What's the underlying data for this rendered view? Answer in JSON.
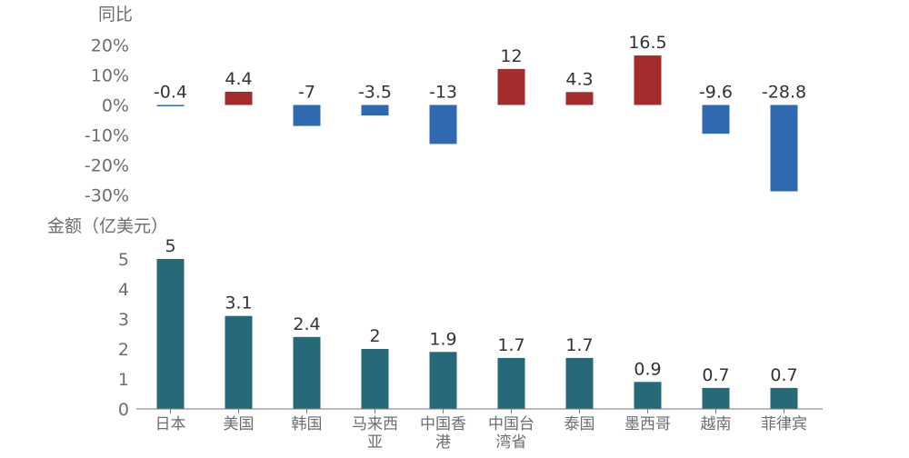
{
  "chart_data": [
    {
      "type": "bar",
      "ylabel": "同比",
      "categories": [
        "日本",
        "美国",
        "韩国",
        "马来西亚",
        "中国香港",
        "中国台湾省",
        "泰国",
        "墨西哥",
        "越南",
        "菲律宾"
      ],
      "values": [
        -0.4,
        4.4,
        -7,
        -3.5,
        -13,
        12,
        4.3,
        16.5,
        -9.6,
        -28.8
      ],
      "data_labels": [
        "-0.4",
        "4.4",
        "-7",
        "-3.5",
        "-13",
        "12",
        "4.3",
        "16.5",
        "-9.6",
        "-28.8"
      ],
      "y_ticks": [
        "20%",
        "10%",
        "0%",
        "-10%",
        "-20%",
        "-30%"
      ],
      "ylim": [
        -30,
        20
      ],
      "colors": {
        "positive": "#a52c2c",
        "negative": "#2f69b0"
      },
      "grid": false
    },
    {
      "type": "bar",
      "ylabel": "金额（亿美元）",
      "categories": [
        "日本",
        "美国",
        "韩国",
        "马来西亚",
        "中国香港",
        "中国台湾省",
        "泰国",
        "墨西哥",
        "越南",
        "菲律宾"
      ],
      "category_labels": [
        [
          "日本"
        ],
        [
          "美国"
        ],
        [
          "韩国"
        ],
        [
          "马来西",
          "亚"
        ],
        [
          "中国香",
          "港"
        ],
        [
          "中国台",
          "湾省"
        ],
        [
          "泰国"
        ],
        [
          "墨西哥"
        ],
        [
          "越南"
        ],
        [
          "菲律宾"
        ]
      ],
      "values": [
        5,
        3.1,
        2.4,
        2,
        1.9,
        1.7,
        1.7,
        0.9,
        0.7,
        0.7
      ],
      "data_labels": [
        "5",
        "3.1",
        "2.4",
        "2",
        "1.9",
        "1.7",
        "1.7",
        "0.9",
        "0.7",
        "0.7"
      ],
      "y_ticks": [
        "5",
        "4",
        "3",
        "2",
        "1",
        "0"
      ],
      "ylim": [
        0,
        5
      ],
      "color": "#266a7a",
      "grid": false
    }
  ]
}
